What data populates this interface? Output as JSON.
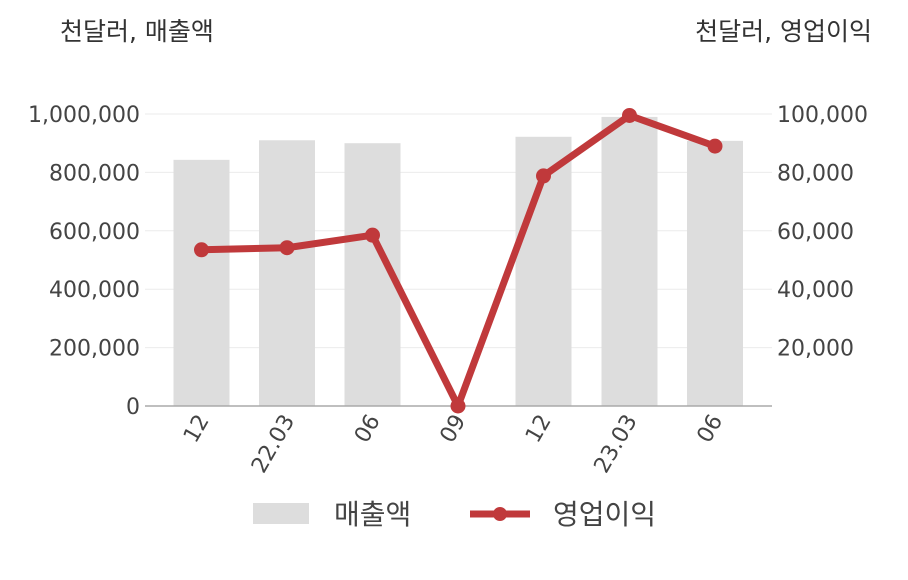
{
  "chart_data": {
    "type": "bar+line",
    "categories": [
      "12",
      "22.03",
      "06",
      "09",
      "12",
      "23.03",
      "06"
    ],
    "series": [
      {
        "name": "매출액",
        "type": "bar",
        "axis": "left",
        "color": "#dddddd",
        "values": [
          843000,
          910000,
          900000,
          0,
          922000,
          990000,
          908000
        ]
      },
      {
        "name": "영업이익",
        "type": "line",
        "axis": "right",
        "color": "#c0393b",
        "values": [
          53500,
          54200,
          58500,
          0,
          78800,
          99500,
          89000
        ]
      }
    ],
    "left_axis": {
      "unit_label": "천달러, 매출액",
      "ylim": [
        0,
        1000000
      ],
      "ticks": [
        "1,000,000",
        "800,000",
        "600,000",
        "400,000",
        "200,000",
        "0"
      ],
      "tick_values": [
        1000000,
        800000,
        600000,
        400000,
        200000,
        0
      ]
    },
    "right_axis": {
      "unit_label": "천달러, 영업이익",
      "ylim": [
        0,
        100000
      ],
      "ticks": [
        "100,000",
        "80,000",
        "60,000",
        "40,000",
        "20,000"
      ],
      "tick_values": [
        100000,
        80000,
        60000,
        40000,
        20000
      ]
    },
    "grid": true,
    "legend_position": "bottom"
  }
}
